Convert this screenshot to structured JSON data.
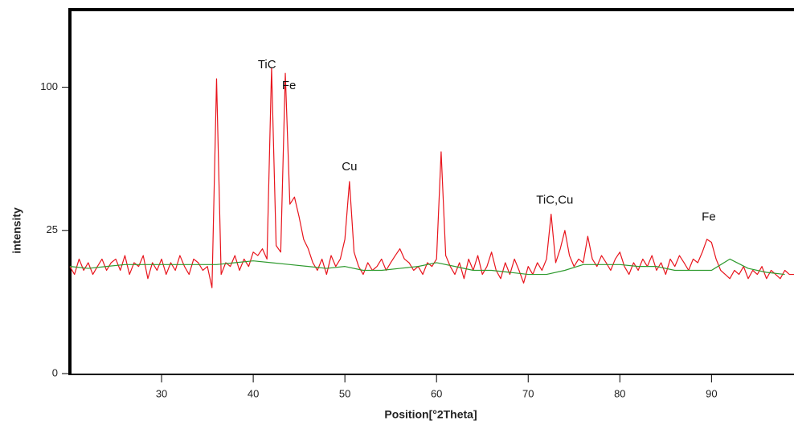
{
  "chart_data": {
    "type": "line",
    "xlabel": "Position[°2Theta]",
    "ylabel": "intensity",
    "xlim": [
      20,
      99
    ],
    "ylim": [
      0,
      163
    ],
    "y_scale": "sqrt",
    "xticks": [
      30,
      40,
      50,
      60,
      70,
      80,
      90
    ],
    "yticks": [
      0,
      25,
      100
    ],
    "series": [
      {
        "color": "#e8141c",
        "x": [
          20,
          20.5,
          21,
          21.5,
          22,
          22.5,
          23,
          23.5,
          24,
          24.5,
          25,
          25.5,
          26,
          26.5,
          27,
          27.5,
          28,
          28.5,
          29,
          29.5,
          30,
          30.5,
          31,
          31.5,
          32,
          32.5,
          33,
          33.5,
          34,
          34.5,
          35,
          35.5,
          36,
          36.5,
          37,
          37.5,
          38,
          38.5,
          39,
          39.5,
          40,
          40.5,
          41,
          41.5,
          42,
          42.5,
          43,
          43.5,
          44,
          44.5,
          45,
          45.5,
          46,
          46.5,
          47,
          47.5,
          48,
          48.5,
          49,
          49.5,
          50,
          50.5,
          51,
          51.5,
          52,
          52.5,
          53,
          53.5,
          54,
          54.5,
          55,
          55.5,
          56,
          56.5,
          57,
          57.5,
          58,
          58.5,
          59,
          59.5,
          60,
          60.5,
          61,
          61.5,
          62,
          62.5,
          63,
          63.5,
          64,
          64.5,
          65,
          65.5,
          66,
          66.5,
          67,
          67.5,
          68,
          68.5,
          69,
          69.5,
          70,
          70.5,
          71,
          71.5,
          72,
          72.5,
          73,
          73.5,
          74,
          74.5,
          75,
          75.5,
          76,
          76.5,
          77,
          77.5,
          78,
          78.5,
          79,
          79.5,
          80,
          80.5,
          81,
          81.5,
          82,
          82.5,
          83,
          83.5,
          84,
          84.5,
          85,
          85.5,
          86,
          86.5,
          87,
          87.5,
          88,
          88.5,
          89,
          89.5,
          90,
          90.5,
          91,
          91.5,
          92,
          92.5,
          93,
          93.5,
          94,
          94.5,
          95,
          95.5,
          96,
          96.5,
          97,
          97.5,
          98,
          98.5,
          99
        ],
        "values": [
          14,
          12,
          16,
          13,
          15,
          12,
          14,
          16,
          13,
          15,
          16,
          13,
          17,
          12,
          15,
          14,
          17,
          11,
          15,
          13,
          16,
          12,
          15,
          13,
          17,
          14,
          12,
          16,
          15,
          13,
          14,
          9,
          106,
          12,
          15,
          14,
          17,
          13,
          16,
          14,
          18,
          17,
          19,
          16,
          114,
          20,
          18,
          110,
          35,
          38,
          30,
          22,
          19,
          15,
          13,
          16,
          12,
          17,
          14,
          16,
          22,
          45,
          18,
          14,
          12,
          15,
          13,
          14,
          16,
          13,
          15,
          17,
          19,
          16,
          15,
          13,
          14,
          12,
          15,
          14,
          16,
          60,
          17,
          14,
          12,
          15,
          11,
          16,
          13,
          17,
          12,
          14,
          18,
          13,
          11,
          15,
          12,
          16,
          13,
          10,
          14,
          12,
          15,
          13,
          16,
          31,
          15,
          19,
          25,
          17,
          14,
          16,
          15,
          23,
          16,
          14,
          17,
          15,
          13,
          16,
          18,
          14,
          12,
          15,
          13,
          16,
          14,
          17,
          13,
          15,
          12,
          16,
          14,
          17,
          15,
          13,
          16,
          15,
          18,
          22,
          21,
          16,
          13,
          12,
          11,
          13,
          12,
          14,
          11,
          13,
          12,
          14,
          11,
          13,
          12,
          11,
          13,
          12,
          12
        ]
      },
      {
        "color": "#2e9a2e",
        "x": [
          20,
          22,
          24,
          26,
          28,
          30,
          32,
          34,
          36,
          38,
          40,
          42,
          44,
          46,
          48,
          50,
          52,
          54,
          56,
          58,
          60,
          62,
          64,
          66,
          68,
          70,
          72,
          74,
          76,
          78,
          80,
          82,
          84,
          86,
          88,
          90,
          92,
          94,
          96,
          98
        ],
        "values": [
          14,
          13.5,
          14,
          14.5,
          14.5,
          14.5,
          14.5,
          14.5,
          14.5,
          15,
          15.5,
          15,
          14.5,
          14,
          13.5,
          14,
          13,
          13,
          13.5,
          14,
          15,
          14,
          13,
          13,
          12.5,
          12,
          12,
          13,
          14.5,
          14.5,
          14.5,
          14,
          14,
          13,
          13,
          13,
          16,
          13.5,
          12.5,
          12
        ]
      }
    ],
    "annotations": [
      {
        "text": "TiC",
        "x": 41.5,
        "y": 116
      },
      {
        "text": "Fe",
        "x": 43.9,
        "y": 101
      },
      {
        "text": "Cu",
        "x": 50.5,
        "y": 52
      },
      {
        "text": "TiC,Cu",
        "x": 72.9,
        "y": 36.5
      },
      {
        "text": "Fe",
        "x": 89.7,
        "y": 29.7
      }
    ]
  }
}
